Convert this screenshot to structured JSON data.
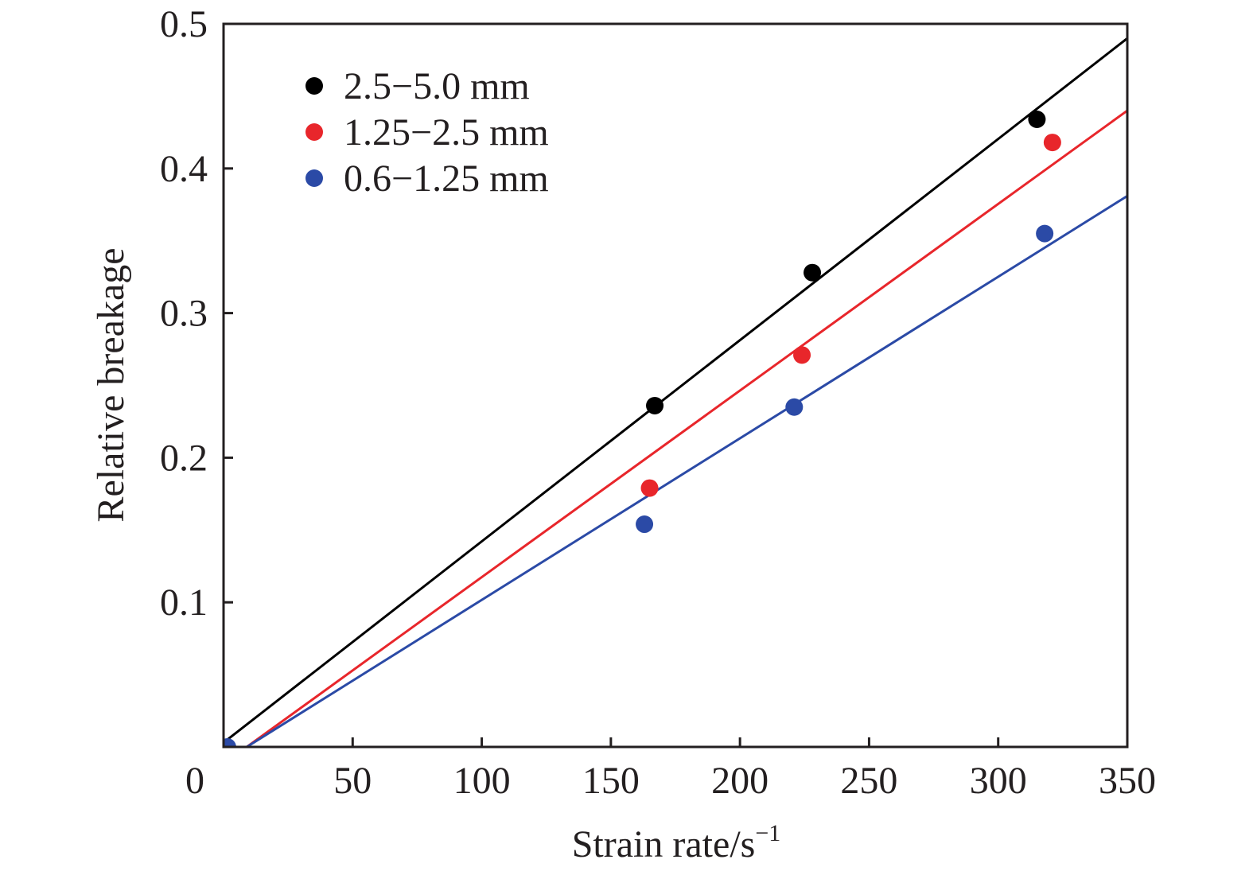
{
  "chart_data": {
    "type": "scatter",
    "xlabel": "Strain rate/s",
    "xlabel_superscript": "−1",
    "ylabel": "Relative breakage",
    "xlim": [
      0,
      350
    ],
    "ylim": [
      0,
      0.5
    ],
    "x_ticks": [
      0,
      50,
      100,
      150,
      200,
      250,
      300,
      350
    ],
    "y_ticks": [
      0.1,
      0.2,
      0.3,
      0.4,
      0.5
    ],
    "x_tick_labels": [
      "0",
      "50",
      "100",
      "150",
      "200",
      "250",
      "300",
      "350"
    ],
    "y_tick_labels": [
      "0.1",
      "0.2",
      "0.3",
      "0.4",
      "0.5"
    ],
    "grid": false,
    "legend_position": "top-left",
    "series": [
      {
        "name": "2.5−5.0 mm",
        "color": "#000000",
        "points": [
          [
            167,
            0.236
          ],
          [
            228,
            0.328
          ],
          [
            315,
            0.434
          ]
        ],
        "fit_line": [
          [
            0,
            0.003
          ],
          [
            350,
            0.49
          ]
        ]
      },
      {
        "name": "1.25−2.5 mm",
        "color": "#e8262b",
        "points": [
          [
            165,
            0.179
          ],
          [
            224,
            0.271
          ],
          [
            321,
            0.418
          ]
        ],
        "fit_line": [
          [
            9,
            0.0
          ],
          [
            350,
            0.44
          ]
        ]
      },
      {
        "name": "0.6−1.25 mm",
        "color": "#2b4aa6",
        "points": [
          [
            1.5,
            0.0
          ],
          [
            163,
            0.154
          ],
          [
            221,
            0.235
          ],
          [
            318,
            0.355
          ]
        ],
        "fit_line": [
          [
            9,
            0.0
          ],
          [
            350,
            0.381
          ]
        ]
      }
    ]
  }
}
